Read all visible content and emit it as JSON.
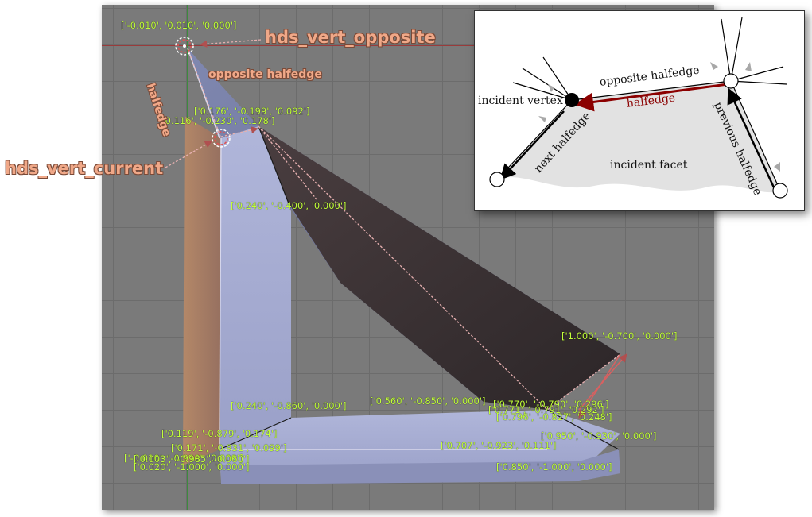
{
  "viewport": {
    "coordinate_labels": [
      "['-0.010', '0.010', '0.000']",
      "['0.176', '-0.199', '0.092']",
      "['0.116', '-0.230', '0.178']",
      "['0.240', '-0.400', '0.000']",
      "['1.000', '-0.700', '0.000']",
      "['0.240', '-0.860', '0.000']",
      "['0.560', '-0.850', '0.000']",
      "['0.770', '-0.790', '0.296']",
      "['0.771', '-0.791', '0.292']",
      "['0.796', '-0.827', '0.248']",
      "['0.119', '-0.879', '0.174']",
      "['0.950', '-0.930', '0.000']",
      "['0.171', '-0.931', '0.099']",
      "['0.707', '-0.923', '0.111']",
      "['-0.010', '-0.990', '0.000']",
      "['0.003', '-0.985', '0.060']",
      "['0.020', '-1.000', '0.000']",
      "['0.850', '-1.000', '0.000']"
    ],
    "annotations": {
      "opposite_vertex": "hds_vert_opposite",
      "current_vertex": "hds_vert_current",
      "opposite_halfedge": "opposite halfedge",
      "halfedge": "halfedge"
    }
  },
  "inset": {
    "incident_vertex": "incident vertex",
    "opposite_halfedge": "opposite halfedge",
    "halfedge": "halfedge",
    "next_halfedge": "next halfedge",
    "previous_halfedge": "previous halfedge",
    "incident_facet": "incident facet"
  },
  "colors": {
    "annotation": "#f0a888",
    "coordinate_text": "#c2ff3a",
    "halfedge": "#8b0000",
    "viewport_bg": "#7a7a7a"
  }
}
